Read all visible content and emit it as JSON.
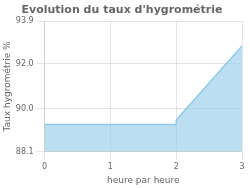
{
  "chart_data": {
    "type": "area",
    "title": "Evolution du taux d'hygrométrie",
    "xlabel": "heure par heure",
    "ylabel": "Taux hygrométrie %",
    "x": [
      0,
      2,
      2,
      3
    ],
    "values": [
      89.3,
      89.3,
      89.5,
      92.8
    ],
    "color": "#8ecae6",
    "xlim": [
      0,
      3
    ],
    "xticks": [
      0,
      1,
      2,
      3
    ],
    "ylim": [
      88.1,
      93.9
    ],
    "yticks": [
      88.1,
      {
        "value": 90.0,
        "label": "90.0"
      },
      {
        "value": 92.0,
        "label": "92.0"
      },
      93.9
    ],
    "grid": true
  }
}
